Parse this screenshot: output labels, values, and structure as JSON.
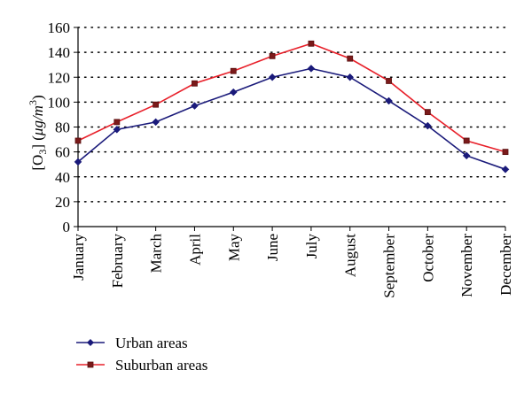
{
  "chart_data": {
    "type": "line",
    "title": "",
    "xlabel": "",
    "ylabel": {
      "prefix": "[O",
      "sub": "3",
      "middle": "] (",
      "mu": "μ",
      "unit": "g/m",
      "sup": "3",
      "suffix": ")"
    },
    "ylim": [
      0,
      160
    ],
    "yticks": [
      "0",
      "20",
      "40",
      "60",
      "80",
      "100",
      "120",
      "140",
      "160"
    ],
    "grid": "horizontal-dotted",
    "legend_position": "bottom-left",
    "categories": [
      "January",
      "February",
      "March",
      "April",
      "May",
      "June",
      "July",
      "August",
      "September",
      "October",
      "November",
      "December"
    ],
    "series": [
      {
        "name": "Urban areas",
        "color": "#1a1a7a",
        "marker": "diamond",
        "values": [
          52,
          78,
          84,
          97,
          108,
          120,
          127,
          120,
          101,
          81,
          57,
          46
        ]
      },
      {
        "name": "Suburban areas",
        "color": "#e8202a",
        "marker": "square",
        "values": [
          69,
          84,
          98,
          115,
          125,
          137,
          147,
          135,
          117,
          92,
          69,
          60
        ]
      }
    ]
  }
}
